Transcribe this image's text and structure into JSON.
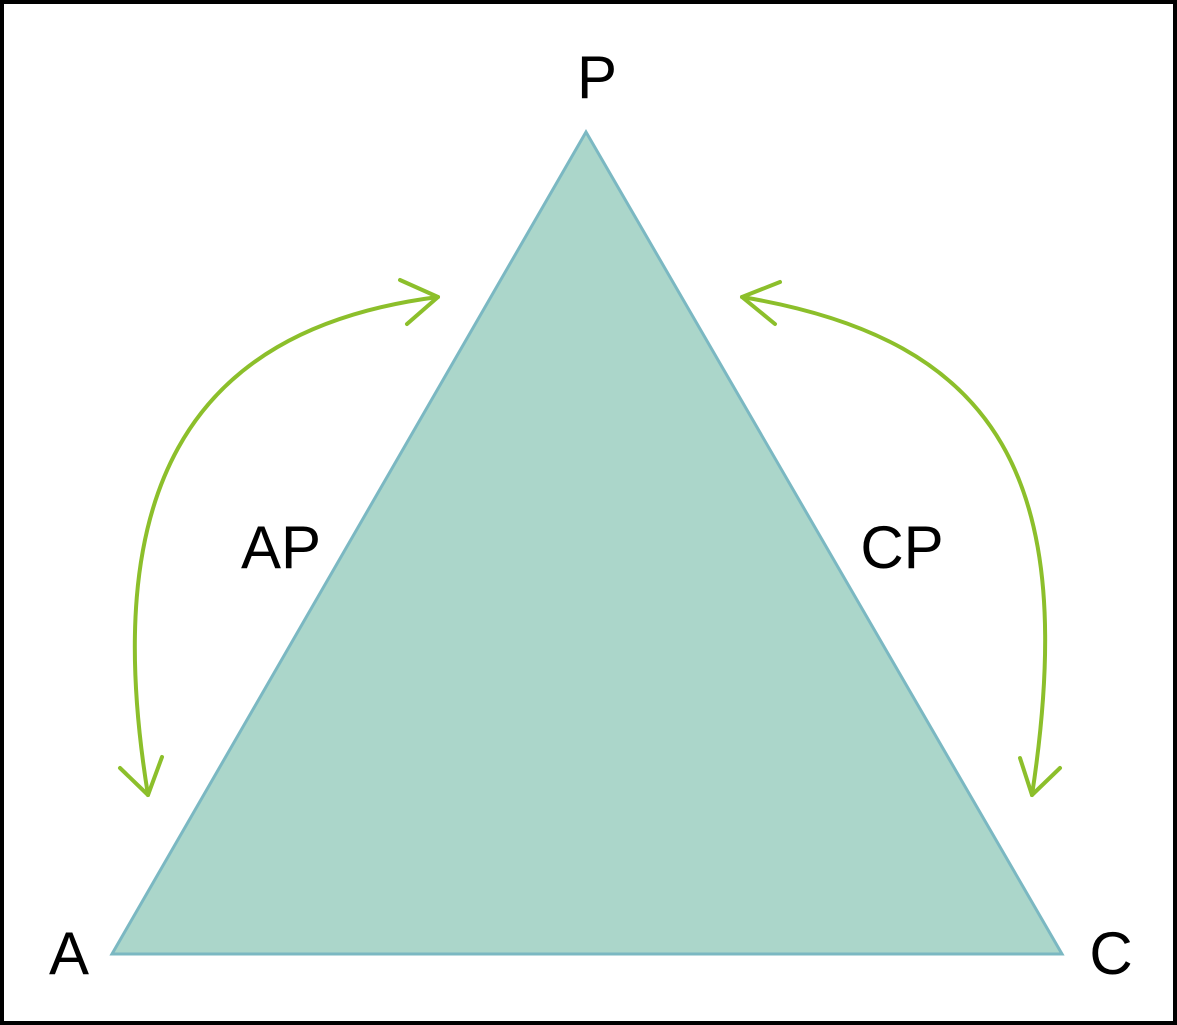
{
  "diagram": {
    "vertices": {
      "top": "P",
      "left": "A",
      "right": "C"
    },
    "edges": {
      "left": "AP",
      "right": "CP"
    },
    "colors": {
      "triangle_fill": "#abd6ca",
      "triangle_stroke": "#7bb8c2",
      "arrow": "#8cbf2b",
      "border": "#000000",
      "text": "#000000"
    }
  }
}
